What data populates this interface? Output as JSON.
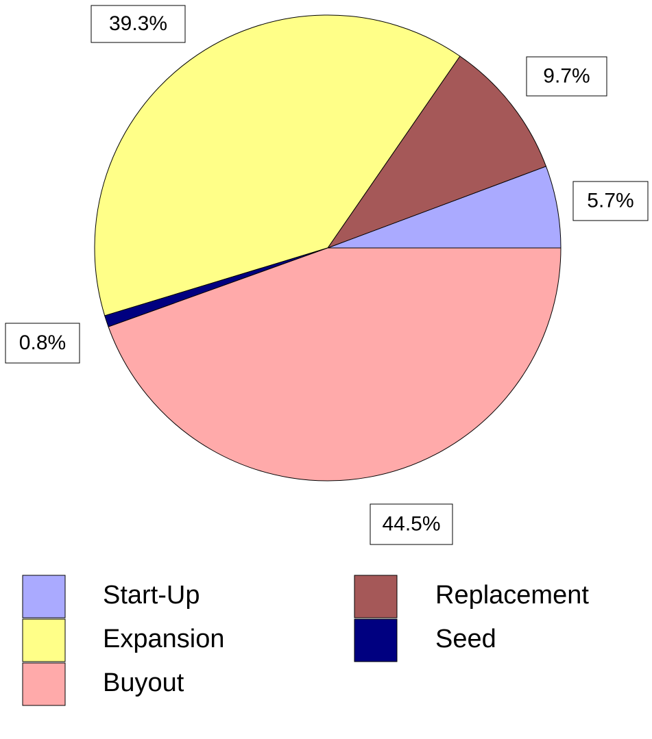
{
  "chart_data": {
    "type": "pie",
    "categories": [
      "Start-Up",
      "Replacement",
      "Expansion",
      "Seed",
      "Buyout"
    ],
    "values": [
      5.7,
      9.7,
      39.3,
      0.8,
      44.5
    ],
    "value_labels": [
      "5.7%",
      "9.7%",
      "39.3%",
      "0.8%",
      "44.5%"
    ],
    "colors": [
      "#aaaaff",
      "#a55858",
      "#ffff88",
      "#000080",
      "#ffaaaa"
    ]
  }
}
